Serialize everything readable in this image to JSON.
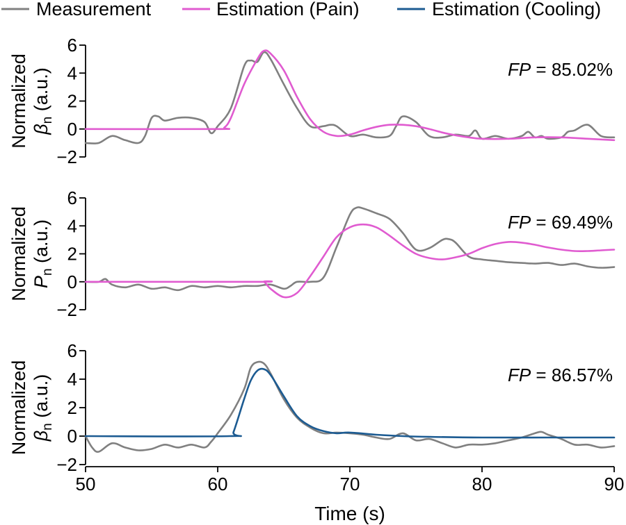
{
  "chart_data": [
    {
      "type": "line",
      "panel": "top",
      "ylabel_line1": "Normalized",
      "ylabel_sym": "β",
      "ylabel_sub": "n",
      "ylabel_unit": " (a.u.)",
      "annotation_sym": "FP",
      "annotation_val": " = 85.02%",
      "xlim": [
        50,
        90
      ],
      "ylim": [
        -2,
        6
      ],
      "yticks": [
        -2,
        0,
        2,
        4,
        6
      ],
      "ytick_labels": [
        "−2",
        "0",
        "2",
        "4",
        "6"
      ],
      "series": [
        {
          "name": "Measurement",
          "color": "#808080",
          "x": [
            50,
            51,
            52,
            53,
            54,
            54.5,
            55,
            55.5,
            56,
            57,
            58,
            59,
            59.5,
            60,
            61,
            62,
            62.5,
            63,
            63.5,
            64,
            65,
            66,
            67,
            68,
            68.5,
            69,
            70,
            71,
            72,
            73,
            73.5,
            74,
            75,
            76,
            77,
            78,
            79,
            79.5,
            80,
            81,
            82,
            83,
            83.5,
            84,
            84.5,
            85,
            86,
            86.5,
            87,
            88,
            89,
            90
          ],
          "y": [
            -1,
            -1,
            -0.5,
            -0.8,
            -1,
            -0.5,
            0.8,
            0.9,
            0.6,
            0.8,
            0.8,
            0.5,
            -0.3,
            0.2,
            1.5,
            4.5,
            4.9,
            4.8,
            5.5,
            5,
            3.2,
            1.5,
            0.2,
            0.2,
            0.3,
            0.2,
            -0.5,
            -0.4,
            -0.6,
            -0.5,
            0.2,
            0.9,
            0.5,
            -0.5,
            -0.6,
            -0.4,
            -0.5,
            -0.1,
            -0.7,
            -0.5,
            -0.7,
            -0.5,
            -0.2,
            -0.6,
            -0.5,
            -0.7,
            -0.6,
            -0.2,
            -0.1,
            0.3,
            -0.5,
            -0.6
          ]
        },
        {
          "name": "Estimation (Pain)",
          "color": "#e05bd0",
          "x": [
            50,
            60,
            60.5,
            61,
            62,
            63,
            63.5,
            64,
            65,
            66,
            67,
            68,
            69,
            70,
            71,
            72,
            73,
            74,
            75,
            76,
            77,
            78,
            79,
            80,
            82,
            84,
            86,
            88,
            90
          ],
          "y": [
            0,
            0,
            0.1,
            0.8,
            3.2,
            5.0,
            5.6,
            5.4,
            4.2,
            2.3,
            0.7,
            -0.2,
            -0.5,
            -0.4,
            -0.1,
            0.15,
            0.3,
            0.3,
            0.2,
            0,
            -0.25,
            -0.45,
            -0.6,
            -0.7,
            -0.7,
            -0.6,
            -0.6,
            -0.7,
            -0.8
          ]
        }
      ]
    },
    {
      "type": "line",
      "panel": "middle",
      "ylabel_line1": "Normalized",
      "ylabel_sym": "P",
      "ylabel_sub": "n",
      "ylabel_unit": " (a.u.)",
      "annotation_sym": "FP",
      "annotation_val": " = 69.49%",
      "xlim": [
        50,
        90
      ],
      "ylim": [
        -2,
        6
      ],
      "yticks": [
        -2,
        0,
        2,
        4,
        6
      ],
      "ytick_labels": [
        "−2",
        "0",
        "2",
        "4",
        "6"
      ],
      "series": [
        {
          "name": "Measurement",
          "color": "#808080",
          "x": [
            50,
            51,
            51.5,
            52,
            53,
            54,
            55,
            56,
            57,
            58,
            59,
            60,
            61,
            62,
            63,
            64,
            65,
            65.5,
            66,
            67,
            68,
            69,
            70,
            70.5,
            71,
            72,
            73,
            74,
            75,
            76,
            77,
            77.5,
            78,
            79,
            80,
            81,
            82,
            83,
            84,
            85,
            86,
            87,
            88,
            89,
            90
          ],
          "y": [
            0,
            0,
            0.2,
            -0.2,
            -0.4,
            -0.2,
            -0.5,
            -0.4,
            -0.6,
            -0.3,
            -0.4,
            -0.3,
            -0.4,
            -0.3,
            -0.3,
            -0.2,
            -0.5,
            -0.3,
            0,
            0,
            0.3,
            2.5,
            4.8,
            5.3,
            5.25,
            4.9,
            4.5,
            3.5,
            2.3,
            2.4,
            3,
            3.05,
            2.8,
            1.8,
            1.6,
            1.5,
            1.4,
            1.35,
            1.3,
            1.35,
            1.2,
            1.3,
            1.1,
            1.0,
            1.05
          ]
        },
        {
          "name": "Estimation (Pain)",
          "color": "#e05bd0",
          "x": [
            50,
            63,
            63.5,
            64,
            65,
            66,
            67,
            68,
            69,
            70,
            71,
            72,
            73,
            74,
            75,
            76,
            77,
            78,
            79,
            80,
            81,
            82,
            83,
            84,
            85,
            86,
            87,
            88,
            89,
            90
          ],
          "y": [
            0,
            0,
            0,
            -0.5,
            -1.1,
            -0.8,
            0.4,
            1.8,
            3.2,
            3.9,
            4.1,
            3.9,
            3.3,
            2.6,
            2.0,
            1.7,
            1.6,
            1.75,
            2.0,
            2.4,
            2.7,
            2.85,
            2.8,
            2.65,
            2.45,
            2.3,
            2.2,
            2.2,
            2.25,
            2.3
          ]
        }
      ]
    },
    {
      "type": "line",
      "panel": "bottom",
      "ylabel_line1": "Normalized",
      "ylabel_sym": "β",
      "ylabel_sub": "n",
      "ylabel_unit": " (a.u.)",
      "annotation_sym": "FP",
      "annotation_val": " = 86.57%",
      "xlim": [
        50,
        90
      ],
      "ylim": [
        -2,
        6
      ],
      "yticks": [
        -2,
        0,
        2,
        4,
        6
      ],
      "ytick_labels": [
        "−2",
        "0",
        "2",
        "4",
        "6"
      ],
      "xticks": [
        50,
        60,
        70,
        80,
        90
      ],
      "xlabel": "Time (s)",
      "series": [
        {
          "name": "Measurement",
          "color": "#808080",
          "x": [
            50,
            50.5,
            51,
            52,
            53,
            54,
            55,
            56,
            57,
            58,
            59,
            59.5,
            60,
            61,
            62,
            62.5,
            63,
            63.5,
            64,
            65,
            66,
            67,
            68,
            69,
            70,
            71,
            72,
            73,
            74,
            75,
            76,
            77,
            78,
            79,
            80,
            81,
            82,
            83,
            84,
            84.5,
            85,
            86,
            87,
            88,
            89,
            90
          ],
          "y": [
            0,
            -0.8,
            -1.1,
            -0.5,
            -0.8,
            -1,
            -0.9,
            -0.6,
            -0.8,
            -0.6,
            -0.8,
            -0.4,
            0.2,
            1.5,
            3.3,
            4.8,
            5.2,
            5.1,
            4.4,
            2.6,
            1.3,
            0.6,
            0.2,
            0.25,
            0.2,
            0.1,
            -0.1,
            -0.2,
            0.2,
            -0.3,
            -0.2,
            -0.5,
            -0.8,
            -0.6,
            -0.6,
            -0.5,
            -0.3,
            -0.1,
            0.2,
            0.3,
            0.1,
            -0.2,
            -0.6,
            -0.6,
            -0.8,
            -0.7
          ]
        },
        {
          "name": "Estimation (Cooling)",
          "color": "#1c5b92",
          "x": [
            50,
            60.9,
            61.2,
            62,
            62.5,
            63,
            63.5,
            64,
            65,
            66,
            67,
            68,
            69,
            70,
            72,
            74,
            76,
            80,
            85,
            90
          ],
          "y": [
            0,
            0,
            0.3,
            2.6,
            3.9,
            4.6,
            4.7,
            4.3,
            2.8,
            1.4,
            0.7,
            0.35,
            0.2,
            0.25,
            0.1,
            0,
            -0.05,
            -0.1,
            -0.1,
            -0.1
          ]
        }
      ]
    }
  ],
  "legend": [
    {
      "name": "Measurement",
      "color": "#808080"
    },
    {
      "name": "Estimation (Pain)",
      "color": "#e05bd0"
    },
    {
      "name": "Estimation (Cooling)",
      "color": "#1c5b92"
    }
  ]
}
